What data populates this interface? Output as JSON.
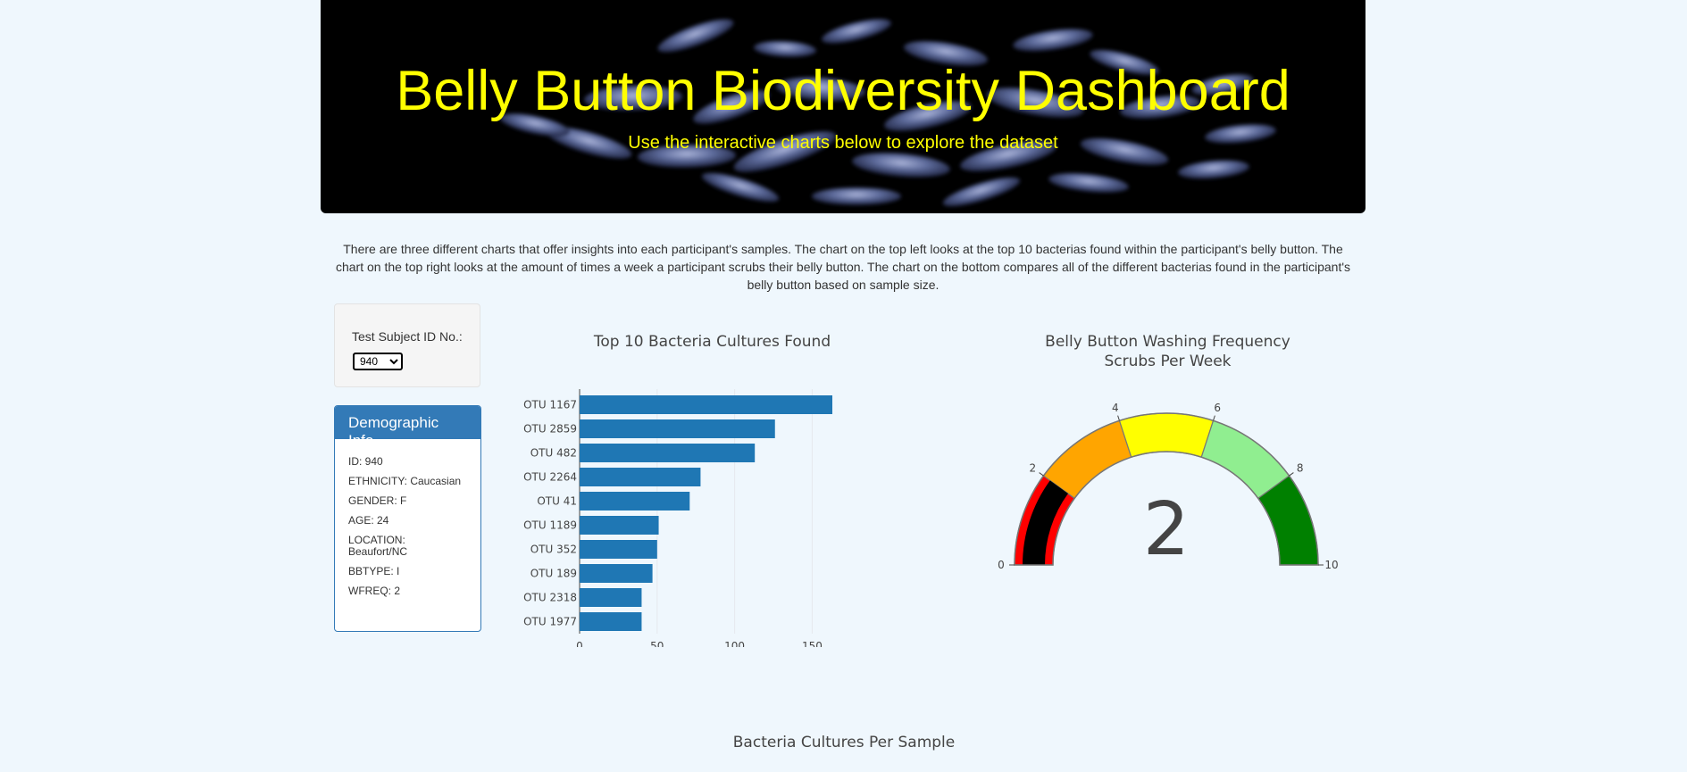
{
  "header": {
    "title": "Belly Button Biodiversity Dashboard",
    "subtitle": "Use the interactive charts below to explore the dataset"
  },
  "intro": "There are three different charts that offer insights into each participant's samples. The chart on the top left looks at the top 10 bacterias found within the participant's belly button. The chart on the top right looks at the amount of times a week a participant scrubs their belly button. The chart on the bottom compares all of the different bacterias found in the participant's belly button based on sample size.",
  "selector": {
    "label": "Test Subject ID No.:",
    "selected": "940"
  },
  "demographics": {
    "heading": "Demographic Info",
    "rows": [
      "ID: 940",
      "ETHNICITY: Caucasian",
      "GENDER: F",
      "AGE: 24",
      "LOCATION: Beaufort/NC",
      "BBTYPE: I",
      "WFREQ: 2"
    ]
  },
  "colors": {
    "bar": "#1f77b4",
    "header_text": "#ffff00",
    "panel": "#337ab7"
  },
  "bottom_chart_title": "Bacteria Cultures Per Sample",
  "chart_data": [
    {
      "type": "bar",
      "orientation": "horizontal",
      "title": "Top 10 Bacteria Cultures Found",
      "categories": [
        "OTU 1167",
        "OTU 2859",
        "OTU 482",
        "OTU 2264",
        "OTU 41",
        "OTU 1189",
        "OTU 352",
        "OTU 189",
        "OTU 2318",
        "OTU 1977"
      ],
      "values": [
        163,
        126,
        113,
        78,
        71,
        51,
        50,
        47,
        40,
        40
      ],
      "xticks": [
        0,
        50,
        100,
        150
      ],
      "xlim": [
        0,
        163
      ],
      "grid": true
    },
    {
      "type": "gauge",
      "title": "Belly Button Washing Frequency",
      "subtitle": "Scrubs Per Week",
      "value": 2,
      "range": [
        0,
        10
      ],
      "ticks": [
        0,
        2,
        4,
        6,
        8,
        10
      ],
      "bands": [
        {
          "from": 0,
          "to": 2,
          "color": "#ff0000"
        },
        {
          "from": 2,
          "to": 4,
          "color": "#ffa500"
        },
        {
          "from": 4,
          "to": 6,
          "color": "#ffff00"
        },
        {
          "from": 6,
          "to": 8,
          "color": "#90ee90"
        },
        {
          "from": 8,
          "to": 10,
          "color": "#008000"
        }
      ],
      "bar_color": "#000000"
    }
  ]
}
